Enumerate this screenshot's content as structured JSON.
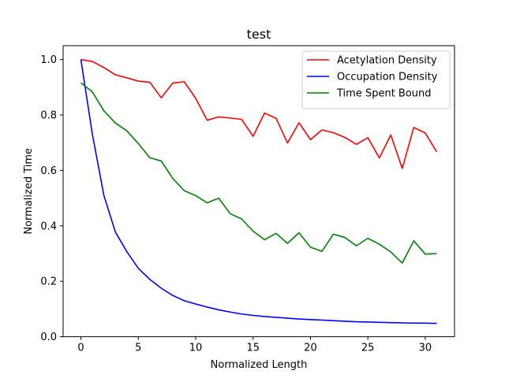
{
  "chart_data": {
    "type": "line",
    "title": "test",
    "xlabel": "Normalized Length",
    "ylabel": "Normalized Time",
    "xlim": [
      -1.55,
      32.55
    ],
    "ylim": [
      0,
      1.05
    ],
    "xticks": [
      0,
      5,
      10,
      15,
      20,
      25,
      30
    ],
    "xtick_labels": [
      "0",
      "5",
      "10",
      "15",
      "20",
      "25",
      "30"
    ],
    "yticks": [
      0,
      0.2,
      0.4,
      0.6,
      0.8,
      1.0
    ],
    "ytick_labels": [
      "0.0",
      "0.2",
      "0.4",
      "0.6",
      "0.8",
      "1.0"
    ],
    "grid": false,
    "legend_position": "top-right",
    "x": [
      0,
      1,
      2,
      3,
      4,
      5,
      6,
      7,
      8,
      9,
      10,
      11,
      12,
      13,
      14,
      15,
      16,
      17,
      18,
      19,
      20,
      21,
      22,
      23,
      24,
      25,
      26,
      27,
      28,
      29,
      30,
      31
    ],
    "series": [
      {
        "name": "Acetylation Density",
        "color": "#ff0000",
        "values": [
          1.0,
          0.993,
          0.971,
          0.945,
          0.934,
          0.922,
          0.918,
          0.862,
          0.915,
          0.92,
          0.86,
          0.781,
          0.793,
          0.789,
          0.784,
          0.723,
          0.807,
          0.788,
          0.699,
          0.772,
          0.711,
          0.746,
          0.736,
          0.719,
          0.694,
          0.718,
          0.645,
          0.728,
          0.607,
          0.755,
          0.735,
          0.667
        ]
      },
      {
        "name": "Occupation Density",
        "color": "#0000ff",
        "values": [
          1.0,
          0.73,
          0.51,
          0.378,
          0.307,
          0.247,
          0.207,
          0.175,
          0.149,
          0.13,
          0.118,
          0.107,
          0.097,
          0.089,
          0.082,
          0.077,
          0.073,
          0.07,
          0.067,
          0.064,
          0.062,
          0.06,
          0.058,
          0.056,
          0.054,
          0.053,
          0.052,
          0.051,
          0.05,
          0.049,
          0.049,
          0.048
        ]
      },
      {
        "name": "Time Spent Bound",
        "color": "#008000",
        "values": [
          0.916,
          0.883,
          0.815,
          0.771,
          0.743,
          0.697,
          0.646,
          0.634,
          0.571,
          0.527,
          0.509,
          0.483,
          0.5,
          0.444,
          0.425,
          0.381,
          0.35,
          0.373,
          0.337,
          0.375,
          0.323,
          0.308,
          0.37,
          0.358,
          0.328,
          0.355,
          0.334,
          0.306,
          0.266,
          0.346,
          0.298,
          0.3
        ]
      }
    ]
  }
}
